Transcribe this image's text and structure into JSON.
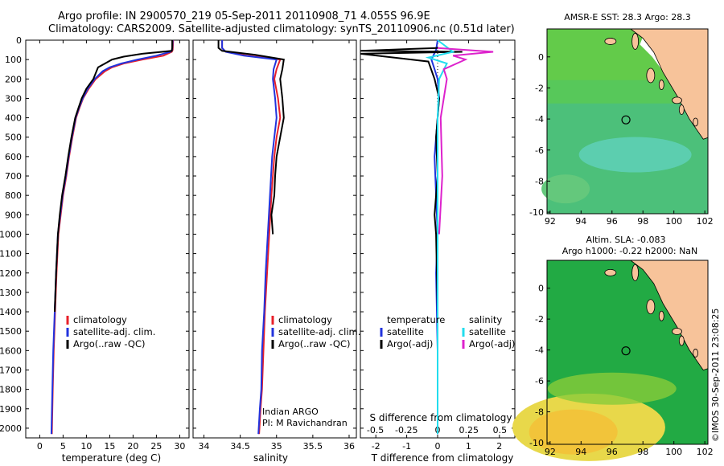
{
  "header": {
    "line1": "Argo profile: IN 2900570_219 05-Sep-2011 20110908_71 4.055S 96.9E",
    "line2": "Climatology: CARS2009. Satellite-adjusted climatology: synTS_20110906.nc (0.51d later)"
  },
  "colors": {
    "climatology": "#e8202a",
    "satellite": "#2233dd",
    "argo": "#000000",
    "satellite_s": "#22ddee",
    "argo_s": "#dd22cc",
    "land": "#f7c39a",
    "sea_green": "#33bb44"
  },
  "depth_ticks": [
    0,
    100,
    200,
    300,
    400,
    500,
    600,
    700,
    800,
    900,
    1000,
    1100,
    1200,
    1300,
    1400,
    1500,
    1600,
    1700,
    1800,
    1900,
    2000
  ],
  "panels": {
    "temperature": {
      "xlabel": "temperature (deg C)",
      "ticks": [
        "0",
        "5",
        "10",
        "15",
        "20",
        "25",
        "30"
      ]
    },
    "salinity": {
      "xlabel": "salinity",
      "ticks": [
        "34",
        "34.5",
        "35",
        "35.5",
        "36"
      ],
      "note1": "Indian ARGO",
      "note2": "PI: M Ravichandran"
    },
    "difference": {
      "xlabel": "T difference from climatology",
      "toplabel": "S difference from climatology",
      "t_ticks": [
        "-2",
        "-1",
        "0",
        "1",
        "2"
      ],
      "s_ticks": [
        "-0.5",
        "-0.25",
        "0",
        "0.25",
        "0.5"
      ]
    }
  },
  "legend_profiles": {
    "climatology": "climatology",
    "satellite": "satellite-adj. clim.",
    "argo": "Argo(..raw -QC)"
  },
  "legend_diff": {
    "temperature": "temperature",
    "salinity": "salinity",
    "satellite": "satellite",
    "argo": "Argo(-adj)"
  },
  "maps": {
    "sst_title": "AMSR-E SST: 28.3 Argo: 28.3",
    "sla_title1": "Altim. SLA: -0.083",
    "sla_title2": "Argo h1000: -0.22 h2000: NaN",
    "lon_ticks": [
      "92",
      "94",
      "96",
      "98",
      "100",
      "102"
    ],
    "lat_ticks": [
      "0",
      "-2",
      "-4",
      "-6",
      "-8",
      "-10"
    ],
    "argo_lon": 96.9,
    "argo_lat": -4.055
  },
  "footer": "©IMOS 30-Sep-2011 23:08:25",
  "chart_data": [
    {
      "type": "line",
      "xlabel": "temperature (deg C)",
      "xlim": [
        -3,
        32
      ],
      "ylim": [
        2050,
        0
      ],
      "series": [
        {
          "name": "climatology",
          "x": [
            28.6,
            28.5,
            28.3,
            26.5,
            22,
            18,
            15.5,
            14,
            12,
            10.5,
            9.3,
            8.5,
            7.8,
            7.0,
            6.3,
            5.7,
            5.0,
            4.5,
            4.0,
            3.6,
            3.3,
            3.0,
            2.8,
            2.6
          ],
          "y": [
            0,
            50,
            60,
            80,
            100,
            120,
            140,
            160,
            200,
            250,
            300,
            350,
            400,
            500,
            600,
            700,
            800,
            900,
            1000,
            1200,
            1400,
            1600,
            1800,
            2030
          ]
        },
        {
          "name": "satellite-adj. clim.",
          "x": [
            28.5,
            28.4,
            28.0,
            25,
            21,
            17.5,
            15,
            13.5,
            11.8,
            10.3,
            9.2,
            8.4,
            7.7,
            6.9,
            6.2,
            5.6,
            4.9,
            4.4,
            3.9,
            3.5,
            3.2,
            2.9,
            2.7,
            2.5
          ],
          "y": [
            0,
            50,
            60,
            80,
            100,
            120,
            140,
            160,
            200,
            250,
            300,
            350,
            400,
            500,
            600,
            700,
            800,
            900,
            1000,
            1200,
            1400,
            1600,
            1800,
            2030
          ]
        },
        {
          "name": "Argo(..raw -QC)",
          "x": [
            28.4,
            28.4,
            28.3,
            22,
            18,
            15.5,
            14,
            12.5,
            11.5,
            10,
            9.0,
            8.3,
            7.6,
            6.8,
            6.1,
            5.5,
            4.8,
            4.3,
            3.9,
            3.5,
            3.2
          ],
          "y": [
            0,
            40,
            55,
            70,
            85,
            100,
            120,
            140,
            200,
            250,
            300,
            350,
            400,
            500,
            600,
            700,
            800,
            900,
            1000,
            1200,
            1400
          ]
        }
      ]
    },
    {
      "type": "line",
      "xlabel": "salinity",
      "xlim": [
        33.85,
        36.1
      ],
      "ylim": [
        2050,
        0
      ],
      "series": [
        {
          "name": "climatology",
          "x": [
            34.25,
            34.25,
            34.3,
            34.6,
            35.05,
            35.0,
            34.97,
            35.02,
            35.05,
            35.0,
            34.97,
            34.93,
            34.9,
            34.87,
            34.84,
            34.82,
            34.8,
            34.78,
            34.76
          ],
          "y": [
            0,
            40,
            60,
            80,
            100,
            150,
            200,
            300,
            400,
            500,
            600,
            800,
            1000,
            1200,
            1400,
            1600,
            1800,
            1900,
            2030
          ]
        },
        {
          "name": "satellite-adj. clim.",
          "x": [
            34.25,
            34.25,
            34.3,
            34.55,
            35.0,
            34.96,
            34.95,
            34.98,
            35.0,
            34.97,
            34.94,
            34.91,
            34.88,
            34.85,
            34.83,
            34.8,
            34.79,
            34.77,
            34.75
          ],
          "y": [
            0,
            40,
            60,
            80,
            100,
            150,
            200,
            300,
            400,
            500,
            600,
            800,
            1000,
            1200,
            1400,
            1600,
            1800,
            1900,
            2030
          ]
        },
        {
          "name": "Argo(..raw -QC)",
          "x": [
            34.2,
            34.2,
            34.25,
            34.7,
            35.1,
            35.08,
            35.05,
            35.08,
            35.1,
            35.05,
            35.0,
            34.98,
            34.97,
            34.93,
            34.95
          ],
          "y": [
            0,
            40,
            55,
            75,
            100,
            150,
            200,
            300,
            400,
            500,
            600,
            700,
            800,
            900,
            1000
          ]
        }
      ]
    },
    {
      "type": "line",
      "xlabel": "T difference from climatology",
      "xlim": [
        -2.5,
        2.5
      ],
      "ylim": [
        2050,
        0
      ],
      "series": [
        {
          "name": "temperature satellite",
          "x": [
            0,
            -0.05,
            -0.2,
            -0.1,
            0,
            0.05,
            0,
            -0.1,
            -0.05,
            0,
            -0.05,
            0,
            0
          ],
          "y": [
            0,
            50,
            100,
            150,
            200,
            300,
            400,
            600,
            800,
            1000,
            1200,
            1600,
            2030
          ]
        },
        {
          "name": "temperature Argo(-adj)",
          "x": [
            0,
            -2.5,
            0.8,
            -2.5,
            -0.3,
            -0.1,
            0.05,
            -0.05,
            0,
            -0.1,
            -0.05,
            0
          ],
          "y": [
            40,
            55,
            60,
            70,
            110,
            200,
            300,
            500,
            700,
            900,
            1000,
            1400
          ]
        },
        {
          "name": "salinity satellite",
          "x": [
            0,
            0.5,
            -0.3,
            0.3,
            0.05,
            0,
            0,
            0,
            0
          ],
          "y": [
            0,
            60,
            90,
            120,
            200,
            400,
            800,
            1200,
            2030
          ]
        },
        {
          "name": "salinity Argo(-adj)",
          "x": [
            0,
            1.8,
            0.5,
            0.9,
            0.2,
            0.3,
            0.1,
            0.15,
            0.05
          ],
          "y": [
            40,
            60,
            80,
            100,
            150,
            200,
            400,
            700,
            1000
          ]
        }
      ]
    }
  ]
}
